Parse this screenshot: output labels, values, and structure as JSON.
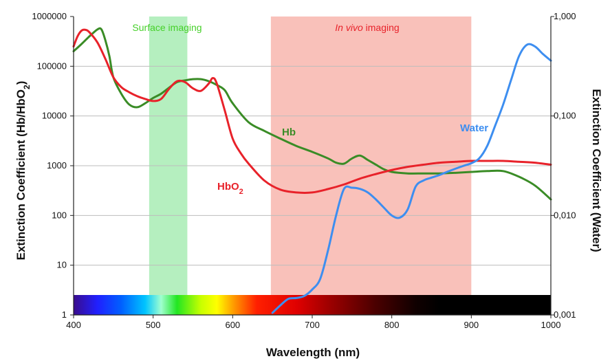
{
  "chart_data": {
    "type": "line",
    "xlabel": "Wavelength (nm)",
    "ylabel": "Extinction Coefficient (Hb/HbO",
    "ylabel_sub": "2",
    "ylabel_end": ")",
    "y2label": "Extinction Coefficient (Water)",
    "xlim": [
      400,
      1000
    ],
    "ylim": [
      1,
      1000000
    ],
    "y2lim": [
      0.001,
      1
    ],
    "yscale": "log",
    "y2scale": "log",
    "grid": "horizontal",
    "x_ticks": [
      "400",
      "500",
      "600",
      "700",
      "800",
      "900",
      "1000"
    ],
    "y_ticks": [
      "1",
      "10",
      "100",
      "1000",
      "10000",
      "100000",
      "1000000"
    ],
    "y2_ticks": [
      "0,001",
      "0,010",
      "0,100",
      "1,000"
    ],
    "regions": [
      {
        "name": "Surface imaging",
        "italic_part": "",
        "from": 495,
        "to": 543,
        "color": "#a8ecb4"
      },
      {
        "name": " imaging",
        "italic_part": "In vivo",
        "from": 648,
        "to": 900,
        "color": "#f8b6ae"
      }
    ],
    "series": [
      {
        "name": "Hb",
        "color": "#3a8c26",
        "axis": "left",
        "x": [
          400,
          410,
          420,
          430,
          435,
          440,
          445,
          450,
          460,
          470,
          480,
          490,
          500,
          510,
          520,
          530,
          540,
          550,
          560,
          570,
          580,
          590,
          600,
          620,
          640,
          660,
          680,
          700,
          720,
          730,
          740,
          750,
          760,
          770,
          780,
          790,
          800,
          820,
          840,
          860,
          880,
          900,
          920,
          940,
          960,
          980,
          1000
        ],
        "y": [
          200000,
          280000,
          400000,
          550000,
          550000,
          330000,
          160000,
          60000,
          28000,
          17000,
          15000,
          18000,
          23000,
          28000,
          37000,
          48000,
          52000,
          55000,
          55000,
          50000,
          42000,
          33000,
          18000,
          7500,
          5000,
          3500,
          2500,
          1900,
          1400,
          1150,
          1100,
          1400,
          1600,
          1300,
          1050,
          850,
          750,
          700,
          700,
          700,
          720,
          750,
          780,
          780,
          600,
          400,
          210
        ]
      },
      {
        "name": "HbO2",
        "label_main": "HbO",
        "label_sub": "2",
        "color": "#e8222a",
        "axis": "left",
        "x": [
          400,
          405,
          410,
          415,
          420,
          430,
          440,
          450,
          460,
          470,
          480,
          490,
          500,
          510,
          520,
          530,
          540,
          550,
          560,
          570,
          575,
          580,
          590,
          600,
          610,
          620,
          640,
          660,
          680,
          700,
          720,
          740,
          760,
          780,
          800,
          820,
          840,
          860,
          880,
          900,
          920,
          940,
          960,
          980,
          1000
        ],
        "y": [
          250000,
          400000,
          520000,
          540000,
          480000,
          300000,
          140000,
          60000,
          38000,
          30000,
          25000,
          22000,
          20000,
          22000,
          35000,
          50000,
          48000,
          36000,
          32000,
          45000,
          58000,
          45000,
          13000,
          3500,
          1800,
          1100,
          500,
          330,
          290,
          290,
          340,
          420,
          550,
          680,
          820,
          950,
          1050,
          1150,
          1200,
          1250,
          1250,
          1250,
          1200,
          1150,
          1050
        ]
      },
      {
        "name": "Water",
        "color": "#3d8ef0",
        "axis": "right",
        "x": [
          650,
          660,
          670,
          680,
          690,
          700,
          710,
          720,
          730,
          740,
          750,
          760,
          770,
          780,
          790,
          800,
          810,
          820,
          830,
          840,
          850,
          860,
          870,
          880,
          890,
          900,
          910,
          920,
          930,
          940,
          950,
          960,
          970,
          980,
          990,
          1000
        ],
        "y": [
          0.00105,
          0.00125,
          0.00145,
          0.00148,
          0.00155,
          0.0018,
          0.0023,
          0.0045,
          0.01,
          0.0185,
          0.019,
          0.0185,
          0.017,
          0.0145,
          0.012,
          0.01,
          0.0095,
          0.0115,
          0.0195,
          0.0225,
          0.024,
          0.0255,
          0.0275,
          0.0295,
          0.0315,
          0.0335,
          0.0375,
          0.05,
          0.08,
          0.13,
          0.23,
          0.4,
          0.52,
          0.5,
          0.42,
          0.36
        ]
      }
    ],
    "color_bar": [
      {
        "nm": 400,
        "color": "#3a0c8c"
      },
      {
        "nm": 430,
        "color": "#2020ff"
      },
      {
        "nm": 460,
        "color": "#0060ff"
      },
      {
        "nm": 490,
        "color": "#00c4ff"
      },
      {
        "nm": 510,
        "color": "#a0ffd0"
      },
      {
        "nm": 530,
        "color": "#22e622"
      },
      {
        "nm": 560,
        "color": "#c8ff00"
      },
      {
        "nm": 580,
        "color": "#ffff00"
      },
      {
        "nm": 600,
        "color": "#ffa000"
      },
      {
        "nm": 630,
        "color": "#ff2000"
      },
      {
        "nm": 680,
        "color": "#e00000"
      },
      {
        "nm": 720,
        "color": "#a00000"
      },
      {
        "nm": 780,
        "color": "#4a0000"
      },
      {
        "nm": 830,
        "color": "#100000"
      },
      {
        "nm": 860,
        "color": "#000000"
      },
      {
        "nm": 1000,
        "color": "#000000"
      }
    ]
  }
}
